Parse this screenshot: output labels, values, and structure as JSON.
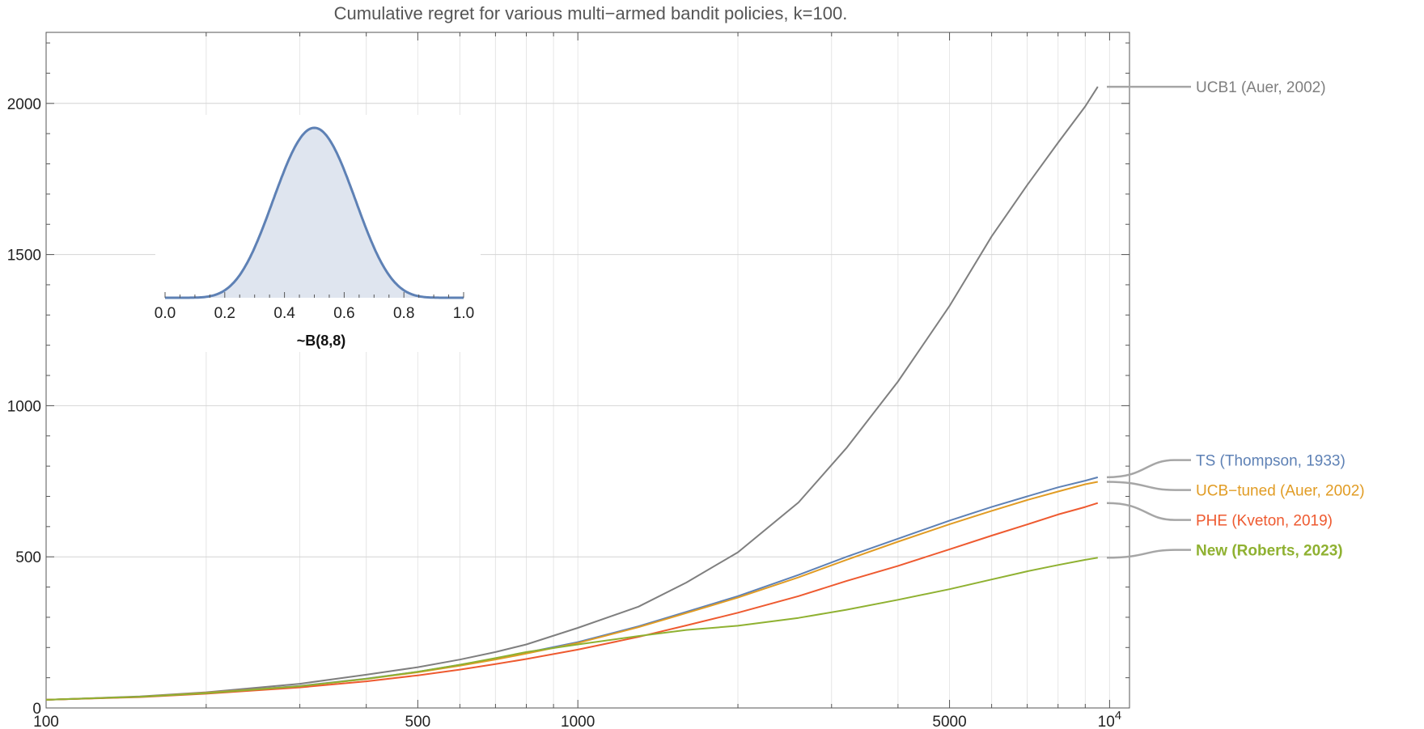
{
  "chart_data": {
    "type": "line",
    "title": "Cumulative regret for various multi−armed bandit policies, k=100.",
    "xlabel": "",
    "ylabel": "",
    "xscale": "log",
    "xlim": [
      100,
      10900
    ],
    "ylim": [
      0,
      2235
    ],
    "x_tick_labels": [
      "100",
      "500",
      "1000",
      "5000",
      "10^4"
    ],
    "y_tick_labels": [
      "0",
      "500",
      "1000",
      "1500",
      "2000"
    ],
    "x_ticks": [
      100,
      500,
      1000,
      5000,
      10000
    ],
    "y_ticks": [
      0,
      500,
      1000,
      1500,
      2000
    ],
    "grid": true,
    "legend_placement": "right, labels attached to line ends",
    "series": [
      {
        "name": "UCB1 (Auer, 2002)",
        "color": "#7f7f7f",
        "bold": false,
        "x": [
          100,
          150,
          200,
          300,
          400,
          500,
          600,
          700,
          800,
          1000,
          1300,
          1600,
          2000,
          2600,
          3200,
          4000,
          5000,
          6000,
          7000,
          8000,
          9000,
          9500
        ],
        "y": [
          27,
          38,
          52,
          80,
          110,
          135,
          160,
          185,
          210,
          265,
          335,
          415,
          515,
          680,
          860,
          1080,
          1330,
          1560,
          1730,
          1870,
          1990,
          2055
        ]
      },
      {
        "name": "TS (Thompson, 1933)",
        "color": "#5e81b5",
        "bold": false,
        "x": [
          100,
          150,
          200,
          300,
          400,
          500,
          600,
          700,
          800,
          1000,
          1300,
          1600,
          2000,
          2600,
          3200,
          4000,
          5000,
          6000,
          7000,
          8000,
          9000,
          9500
        ],
        "y": [
          27,
          37,
          50,
          73,
          97,
          120,
          143,
          163,
          183,
          218,
          270,
          318,
          370,
          440,
          500,
          560,
          620,
          665,
          700,
          730,
          752,
          763
        ]
      },
      {
        "name": "UCB−tuned (Auer, 2002)",
        "color": "#e19c24",
        "bold": false,
        "x": [
          100,
          150,
          200,
          300,
          400,
          500,
          600,
          700,
          800,
          1000,
          1300,
          1600,
          2000,
          2600,
          3200,
          4000,
          5000,
          6000,
          7000,
          8000,
          9000,
          9500
        ],
        "y": [
          27,
          37,
          50,
          72,
          96,
          118,
          140,
          160,
          180,
          215,
          267,
          314,
          365,
          432,
          490,
          550,
          608,
          652,
          688,
          716,
          740,
          748
        ]
      },
      {
        "name": "PHE (Kveton, 2019)",
        "color": "#ee5a30",
        "bold": false,
        "x": [
          100,
          150,
          200,
          300,
          400,
          500,
          600,
          700,
          800,
          1000,
          1300,
          1600,
          2000,
          2600,
          3200,
          4000,
          5000,
          6000,
          7000,
          8000,
          9000,
          9500
        ],
        "y": [
          27,
          36,
          47,
          68,
          88,
          108,
          127,
          145,
          162,
          193,
          235,
          273,
          315,
          370,
          420,
          470,
          525,
          570,
          607,
          640,
          665,
          678
        ]
      },
      {
        "name": "New (Roberts, 2023)",
        "color": "#8fb131",
        "bold": true,
        "x": [
          100,
          150,
          200,
          300,
          400,
          500,
          600,
          700,
          800,
          1000,
          1300,
          1600,
          2000,
          2600,
          3200,
          4000,
          5000,
          6000,
          7000,
          8000,
          9000,
          9500
        ],
        "y": [
          27,
          37,
          49,
          72,
          96,
          120,
          143,
          165,
          185,
          210,
          238,
          258,
          272,
          298,
          325,
          358,
          393,
          425,
          452,
          473,
          490,
          497
        ]
      }
    ],
    "inset": {
      "type": "area",
      "label": "~B(8,8)",
      "a": 8,
      "b": 8,
      "xlim": [
        0,
        1
      ],
      "x_tick_labels": [
        "0.0",
        "0.2",
        "0.4",
        "0.6",
        "0.8",
        "1.0"
      ],
      "x_ticks": [
        0,
        0.2,
        0.4,
        0.6,
        0.8,
        1.0
      ],
      "line_color": "#5e81b5",
      "fill_color": "#dfe5ef"
    }
  }
}
